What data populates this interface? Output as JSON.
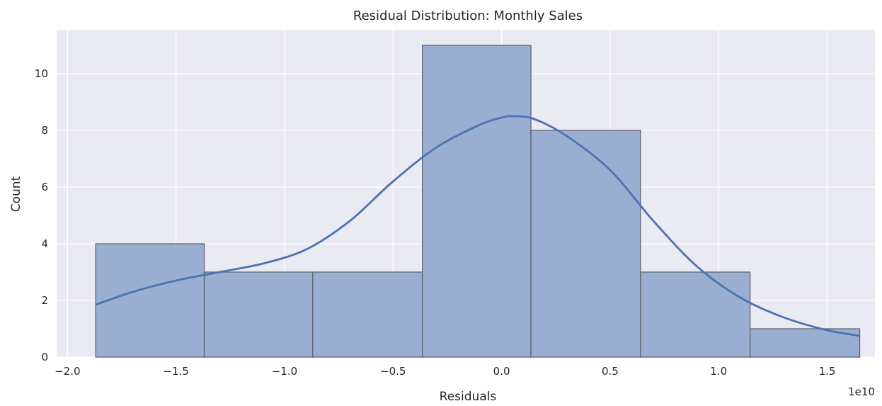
{
  "chart_data": {
    "type": "bar",
    "title": "Residual Distribution: Monthly Sales",
    "xlabel": "Residuals",
    "ylabel": "Count",
    "x_offset_label": "1e10",
    "xlim": [
      -2.05,
      1.72
    ],
    "ylim": [
      0,
      11.55
    ],
    "x_ticks": [
      -2.0,
      -1.5,
      -1.0,
      -0.5,
      0.0,
      0.5,
      1.0,
      1.5
    ],
    "x_tick_labels": [
      "−2.0",
      "−1.5",
      "−1.0",
      "−0.5",
      "0.0",
      "0.5",
      "1.0",
      "1.5"
    ],
    "y_ticks": [
      0,
      2,
      4,
      6,
      8,
      10
    ],
    "y_tick_labels": [
      "0",
      "2",
      "4",
      "6",
      "8",
      "10"
    ],
    "bins": [
      {
        "x0": -1.87,
        "x1": -1.37,
        "count": 4
      },
      {
        "x0": -1.37,
        "x1": -0.87,
        "count": 3
      },
      {
        "x0": -0.87,
        "x1": -0.365,
        "count": 3
      },
      {
        "x0": -0.365,
        "x1": 0.135,
        "count": 11
      },
      {
        "x0": 0.135,
        "x1": 0.64,
        "count": 8
      },
      {
        "x0": 0.64,
        "x1": 1.145,
        "count": 3
      },
      {
        "x0": 1.145,
        "x1": 1.65,
        "count": 1
      }
    ],
    "kde": {
      "x": [
        -1.87,
        -1.7,
        -1.5,
        -1.3,
        -1.1,
        -0.9,
        -0.7,
        -0.5,
        -0.3,
        -0.1,
        0.0,
        0.05,
        0.15,
        0.3,
        0.5,
        0.7,
        0.9,
        1.1,
        1.3,
        1.5,
        1.65
      ],
      "y": [
        1.85,
        2.3,
        2.7,
        3.0,
        3.3,
        3.8,
        4.8,
        6.2,
        7.4,
        8.2,
        8.45,
        8.5,
        8.4,
        7.8,
        6.6,
        4.8,
        3.2,
        2.1,
        1.4,
        0.95,
        0.75
      ]
    },
    "grid": true,
    "colors": {
      "bar_fill": "#9aaed1",
      "bar_edge": "#5f6470",
      "kde_line": "#4c72b0",
      "plot_background": "#eaeaf2",
      "grid": "#ffffff"
    }
  }
}
